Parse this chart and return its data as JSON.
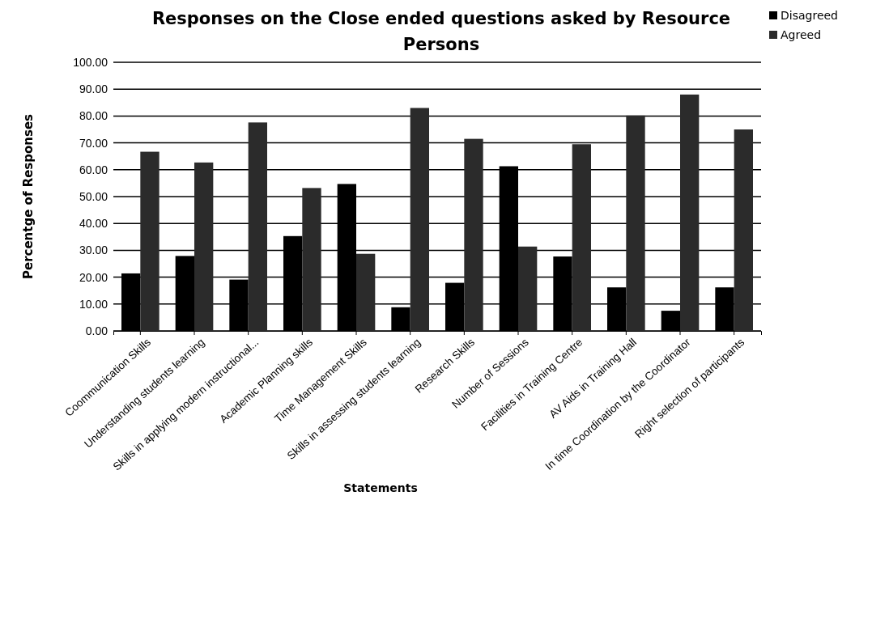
{
  "chart_data": {
    "type": "bar",
    "title": "Responses on the Close ended questions asked by Resource Persons",
    "xlabel": "Statements",
    "ylabel": "Percentge of Responses",
    "categories": [
      "Coommunication Skills",
      "Understanding students learning",
      "Skills in applying modern instructional...",
      "Academic Planning skills",
      "Time Management Skills",
      "Skills in assessing students learning",
      "Research Skills",
      "Number of Sessions",
      "Facilities in Training Centre",
      "AV Aids in Training Hall",
      "In time Coordination by the Coordinator",
      "Right selection of participants"
    ],
    "series": [
      {
        "name": "Disagreed",
        "color": "#000000",
        "values": [
          21.4,
          27.9,
          19.1,
          35.3,
          54.7,
          8.8,
          17.9,
          61.3,
          27.7,
          16.2,
          7.5,
          16.2
        ]
      },
      {
        "name": "Agreed",
        "color": "#2b2b2b",
        "values": [
          66.7,
          62.7,
          77.6,
          53.2,
          28.7,
          83,
          71.5,
          31.4,
          69.5,
          80.2,
          88,
          75
        ]
      }
    ],
    "ylim": [
      0,
      100
    ],
    "yticks": [
      {
        "value": 0,
        "label": "0.00"
      },
      {
        "value": 10,
        "label": "10.00"
      },
      {
        "value": 20,
        "label": "20.00"
      },
      {
        "value": 30,
        "label": "30.00"
      },
      {
        "value": 40,
        "label": "40.00"
      },
      {
        "value": 50,
        "label": "50.00"
      },
      {
        "value": 60,
        "label": "60.00"
      },
      {
        "value": 70,
        "label": "70.00"
      },
      {
        "value": 80,
        "label": "80.00"
      },
      {
        "value": 90,
        "label": "90.00"
      },
      {
        "value": 100,
        "label": "100.00"
      }
    ],
    "grid": "y",
    "legend": "top right"
  }
}
